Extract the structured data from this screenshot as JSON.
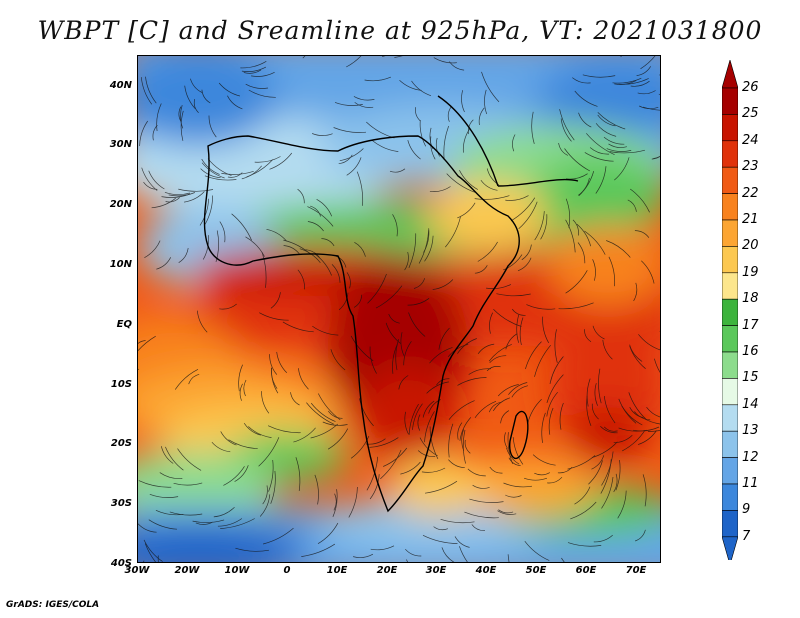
{
  "title": "WBPT [C] and Sreamline at 925hPa, VT: 2021031800",
  "footer": "GrADS: IGES/COLA",
  "axes": {
    "lat_labels": [
      "40N",
      "30N",
      "20N",
      "10N",
      "EQ",
      "10S",
      "20S",
      "30S",
      "40S"
    ],
    "lon_labels": [
      "30W",
      "20W",
      "10W",
      "0",
      "10E",
      "20E",
      "30E",
      "40E",
      "50E",
      "60E",
      "70E"
    ]
  },
  "colorbar": {
    "labels": [
      "26",
      "25",
      "24",
      "23",
      "22",
      "21",
      "20",
      "19",
      "18",
      "17",
      "16",
      "15",
      "14",
      "13",
      "12",
      "11",
      "9",
      "7"
    ],
    "colors": [
      "#a50000",
      "#c81400",
      "#e0320a",
      "#f05a14",
      "#f8821e",
      "#fca532",
      "#fcc850",
      "#fce68c",
      "#3cb43c",
      "#5ac85a",
      "#8cdc8c",
      "#e6fae6",
      "#b4dcf0",
      "#8cc3eb",
      "#64a5e6",
      "#3c87dc",
      "#1e64c8"
    ]
  }
}
